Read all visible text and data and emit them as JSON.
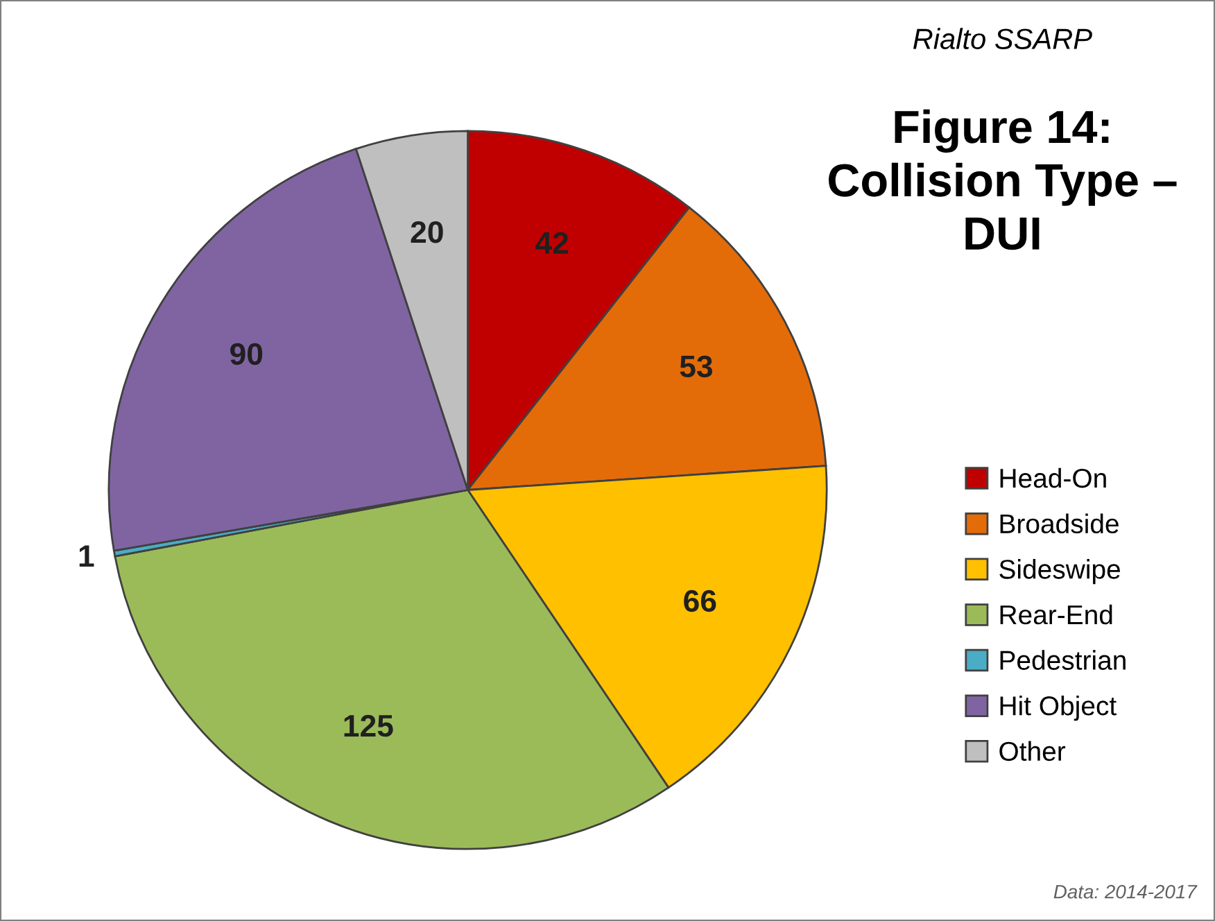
{
  "chart_data": {
    "type": "pie",
    "subtitle": "Rialto SSARP",
    "title": "Figure 14:\nCollision Type –\nDUI",
    "categories": [
      "Head-On",
      "Broadside",
      "Sideswipe",
      "Rear-End",
      "Pedestrian",
      "Hit Object",
      "Other"
    ],
    "values": [
      42,
      53,
      66,
      125,
      1,
      90,
      20
    ],
    "colors": [
      "#c00000",
      "#e36c09",
      "#ffc000",
      "#9bbb59",
      "#4bacc6",
      "#8064a2",
      "#bfbfbf"
    ],
    "data_labels": true,
    "legend": "right",
    "annotations": [
      "Data: 2014-2017"
    ]
  }
}
